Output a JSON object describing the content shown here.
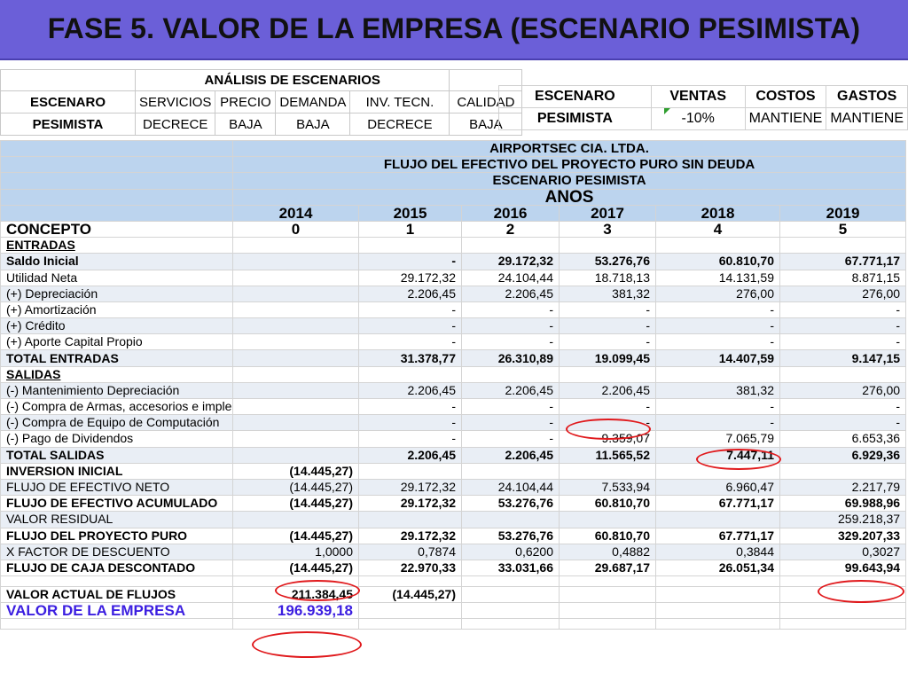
{
  "title": "FASE 5. VALOR DE LA EMPRESA (ESCENARIO PESIMISTA)",
  "scenario_analysis": {
    "heading": "ANÁLISIS DE ESCENARIOS",
    "headers": [
      "ESCENARO",
      "SERVICIOS",
      "PRECIO",
      "DEMANDA",
      "INV. TECN.",
      "CALIDAD"
    ],
    "row": [
      "PESIMISTA",
      "DECRECE",
      "BAJA",
      "BAJA",
      "DECRECE",
      "BAJA"
    ]
  },
  "scenario_summary": {
    "headers": [
      "ESCENARO",
      "VENTAS",
      "COSTOS",
      "GASTOS"
    ],
    "row": [
      "PESIMISTA",
      "-10%",
      "MANTIENE",
      "MANTIENE"
    ]
  },
  "cashflow": {
    "company": "AIRPORTSEC CIA. LTDA.",
    "subtitle": "FLUJO DEL EFECTIVO DEL PROYECTO PURO SIN DEUDA",
    "scenario": "ESCENARIO PESIMISTA",
    "years_label": "AÑOS",
    "years": [
      "2014",
      "2015",
      "2016",
      "2017",
      "2018",
      "2019"
    ],
    "concept_label": "CONCEPTO",
    "periods": [
      "0",
      "1",
      "2",
      "3",
      "4",
      "5"
    ],
    "rows": [
      {
        "label": "ENTRADAS",
        "values": [
          "",
          "",
          "",
          "",
          "",
          ""
        ],
        "style": "section"
      },
      {
        "label": "Saldo Inicial",
        "values": [
          "",
          "-",
          "29.172,32",
          "53.276,76",
          "60.810,70",
          "67.771,17"
        ],
        "style": "bold"
      },
      {
        "label": "Utilidad Neta",
        "values": [
          "",
          "29.172,32",
          "24.104,44",
          "18.718,13",
          "14.131,59",
          "8.871,15"
        ],
        "style": "normal"
      },
      {
        "label": "(+) Depreciación",
        "values": [
          "",
          "2.206,45",
          "2.206,45",
          "381,32",
          "276,00",
          "276,00"
        ],
        "style": "normal"
      },
      {
        "label": "(+) Amortización",
        "values": [
          "",
          "-",
          "-",
          "-",
          "-",
          "-"
        ],
        "style": "normal"
      },
      {
        "label": "(+) Crédito",
        "values": [
          "",
          "-",
          "-",
          "-",
          "-",
          "-"
        ],
        "style": "normal"
      },
      {
        "label": "(+) Aporte Capital Propio",
        "values": [
          "",
          "-",
          "-",
          "-",
          "-",
          "-"
        ],
        "style": "normal"
      },
      {
        "label": "TOTAL ENTRADAS",
        "values": [
          "",
          "31.378,77",
          "26.310,89",
          "19.099,45",
          "14.407,59",
          "9.147,15"
        ],
        "style": "bold"
      },
      {
        "label": "SALIDAS",
        "values": [
          "",
          "",
          "",
          "",
          "",
          ""
        ],
        "style": "section"
      },
      {
        "label": "(-) Mantenimiento Depreciación",
        "values": [
          "",
          "2.206,45",
          "2.206,45",
          "2.206,45",
          "381,32",
          "276,00"
        ],
        "style": "normal"
      },
      {
        "label": "(-) Compra  de Armas, accesorios e implementos de seguri",
        "values": [
          "",
          "-",
          "-",
          "-",
          "-",
          "-"
        ],
        "style": "normal"
      },
      {
        "label": "(-) Compra de Equipo de Computación",
        "values": [
          "",
          "-",
          "-",
          "-",
          "-",
          "-"
        ],
        "style": "normal"
      },
      {
        "label": "(-) Pago de Dividendos",
        "values": [
          "",
          "-",
          "-",
          "9.359,07",
          "7.065,79",
          "6.653,36"
        ],
        "style": "normal"
      },
      {
        "label": "TOTAL SALIDAS",
        "values": [
          "",
          "2.206,45",
          "2.206,45",
          "11.565,52",
          "7.447,11",
          "6.929,36"
        ],
        "style": "bold"
      },
      {
        "label": "INVERSION INICIAL",
        "values": [
          "(14.445,27)",
          "",
          "",
          "",
          "",
          ""
        ],
        "style": "bold"
      },
      {
        "label": "FLUJO DE EFECTIVO NETO",
        "values": [
          "(14.445,27)",
          "29.172,32",
          "24.104,44",
          "7.533,94",
          "6.960,47",
          "2.217,79"
        ],
        "style": "normal"
      },
      {
        "label": "FLUJO DE EFECTIVO ACUMULADO",
        "values": [
          "(14.445,27)",
          "29.172,32",
          "53.276,76",
          "60.810,70",
          "67.771,17",
          "69.988,96"
        ],
        "style": "bold"
      },
      {
        "label": "VALOR RESIDUAL",
        "values": [
          "",
          "",
          "",
          "",
          "",
          "259.218,37"
        ],
        "style": "normal"
      },
      {
        "label": "FLUJO DEL PROYECTO PURO",
        "values": [
          "(14.445,27)",
          "29.172,32",
          "53.276,76",
          "60.810,70",
          "67.771,17",
          "329.207,33"
        ],
        "style": "bold"
      },
      {
        "label": "X FACTOR DE DESCUENTO",
        "values": [
          "1,0000",
          "0,7874",
          "0,6200",
          "0,4882",
          "0,3844",
          "0,3027"
        ],
        "style": "normal"
      },
      {
        "label": "FLUJO DE CAJA DESCONTADO",
        "values": [
          "(14.445,27)",
          "22.970,33",
          "33.031,66",
          "29.687,17",
          "26.051,34",
          "99.643,94"
        ],
        "style": "bold"
      }
    ],
    "present_value": {
      "label": "VALOR ACTUAL DE FLUJOS",
      "values": [
        "211.384,45",
        "(14.445,27)"
      ]
    },
    "company_value": {
      "label": "VALOR DE LA EMPRESA",
      "value": "196.939,18"
    }
  }
}
